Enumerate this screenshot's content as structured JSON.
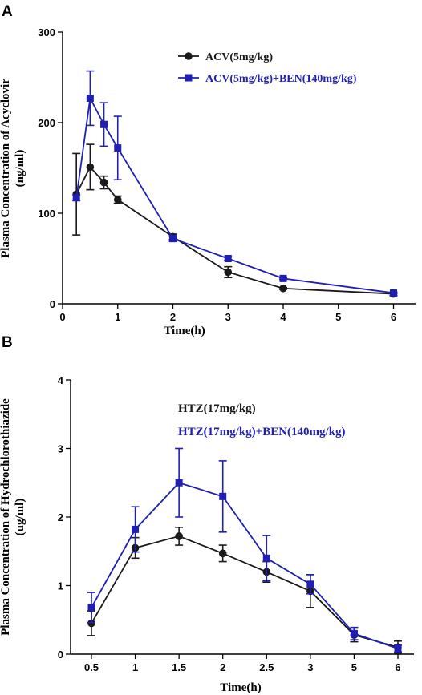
{
  "panels": [
    {
      "letter": "A",
      "chart_data": {
        "type": "line",
        "title": "",
        "xlabel": "Time(h)",
        "ylabel_lines": [
          "Plasma Concentration of Acyclovir",
          "(ng/ml)"
        ],
        "xlim": [
          0,
          6.4
        ],
        "ylim": [
          0,
          300
        ],
        "xticks": [
          0,
          1,
          2,
          3,
          4,
          5,
          6
        ],
        "xtick_labels": [
          "0",
          "1",
          "2",
          "3",
          "4",
          "5",
          "6"
        ],
        "yticks": [
          0,
          100,
          200,
          300
        ],
        "ytick_labels": [
          "0",
          "100",
          "200",
          "300"
        ],
        "grid": false,
        "legend": "top-right",
        "series": [
          {
            "name": "ACV(5mg/kg)",
            "color": "#1a1a1a",
            "marker": "circle",
            "x": [
              0.25,
              0.5,
              0.75,
              1,
              2,
              3,
              4,
              6
            ],
            "y": [
              121,
              151,
              134,
              115,
              74,
              35,
              17,
              11
            ],
            "err": [
              45,
              25,
              7,
              4,
              3,
              6,
              1,
              2
            ]
          },
          {
            "name": "ACV(5mg/kg)+BEN(140mg/kg)",
            "color": "#1f1fb4",
            "marker": "square",
            "x": [
              0.25,
              0.5,
              0.75,
              1,
              2,
              3,
              4,
              6
            ],
            "y": [
              117,
              227,
              198,
              172,
              72,
              50,
              28,
              12
            ],
            "err": [
              3,
              30,
              24,
              35,
              3,
              2,
              1,
              1
            ]
          }
        ]
      }
    },
    {
      "letter": "B",
      "chart_data": {
        "type": "line",
        "title": "",
        "xlabel": "Time(h)",
        "ylabel_lines": [
          "Plasma Concentration of Hydrochlorothiazide",
          "(ug/ml)"
        ],
        "ylim": [
          0,
          4
        ],
        "categories": [
          "0.5",
          "1",
          "1.5",
          "2",
          "2.5",
          "3",
          "5",
          "6"
        ],
        "yticks": [
          0,
          1,
          2,
          3,
          4
        ],
        "ytick_labels": [
          "0",
          "1",
          "2",
          "3",
          "4"
        ],
        "grid": false,
        "legend": "top-right",
        "series": [
          {
            "name": "HTZ(17mg/kg)",
            "color": "#1a1a1a",
            "marker": "circle",
            "y": [
              0.45,
              1.55,
              1.72,
              1.47,
              1.2,
              0.92,
              0.28,
              0.1
            ],
            "err": [
              0.18,
              0.15,
              0.13,
              0.12,
              0.15,
              0.24,
              0.1,
              0.09
            ]
          },
          {
            "name": "HTZ(17mg/kg)+BEN(140mg/kg)",
            "color": "#1f1fb4",
            "marker": "square",
            "y": [
              0.68,
              1.82,
              2.5,
              2.3,
              1.4,
              1.02,
              0.3,
              0.08
            ],
            "err": [
              0.22,
              0.33,
              0.5,
              0.52,
              0.33,
              0.14,
              0.09,
              0.05
            ]
          }
        ]
      }
    }
  ]
}
